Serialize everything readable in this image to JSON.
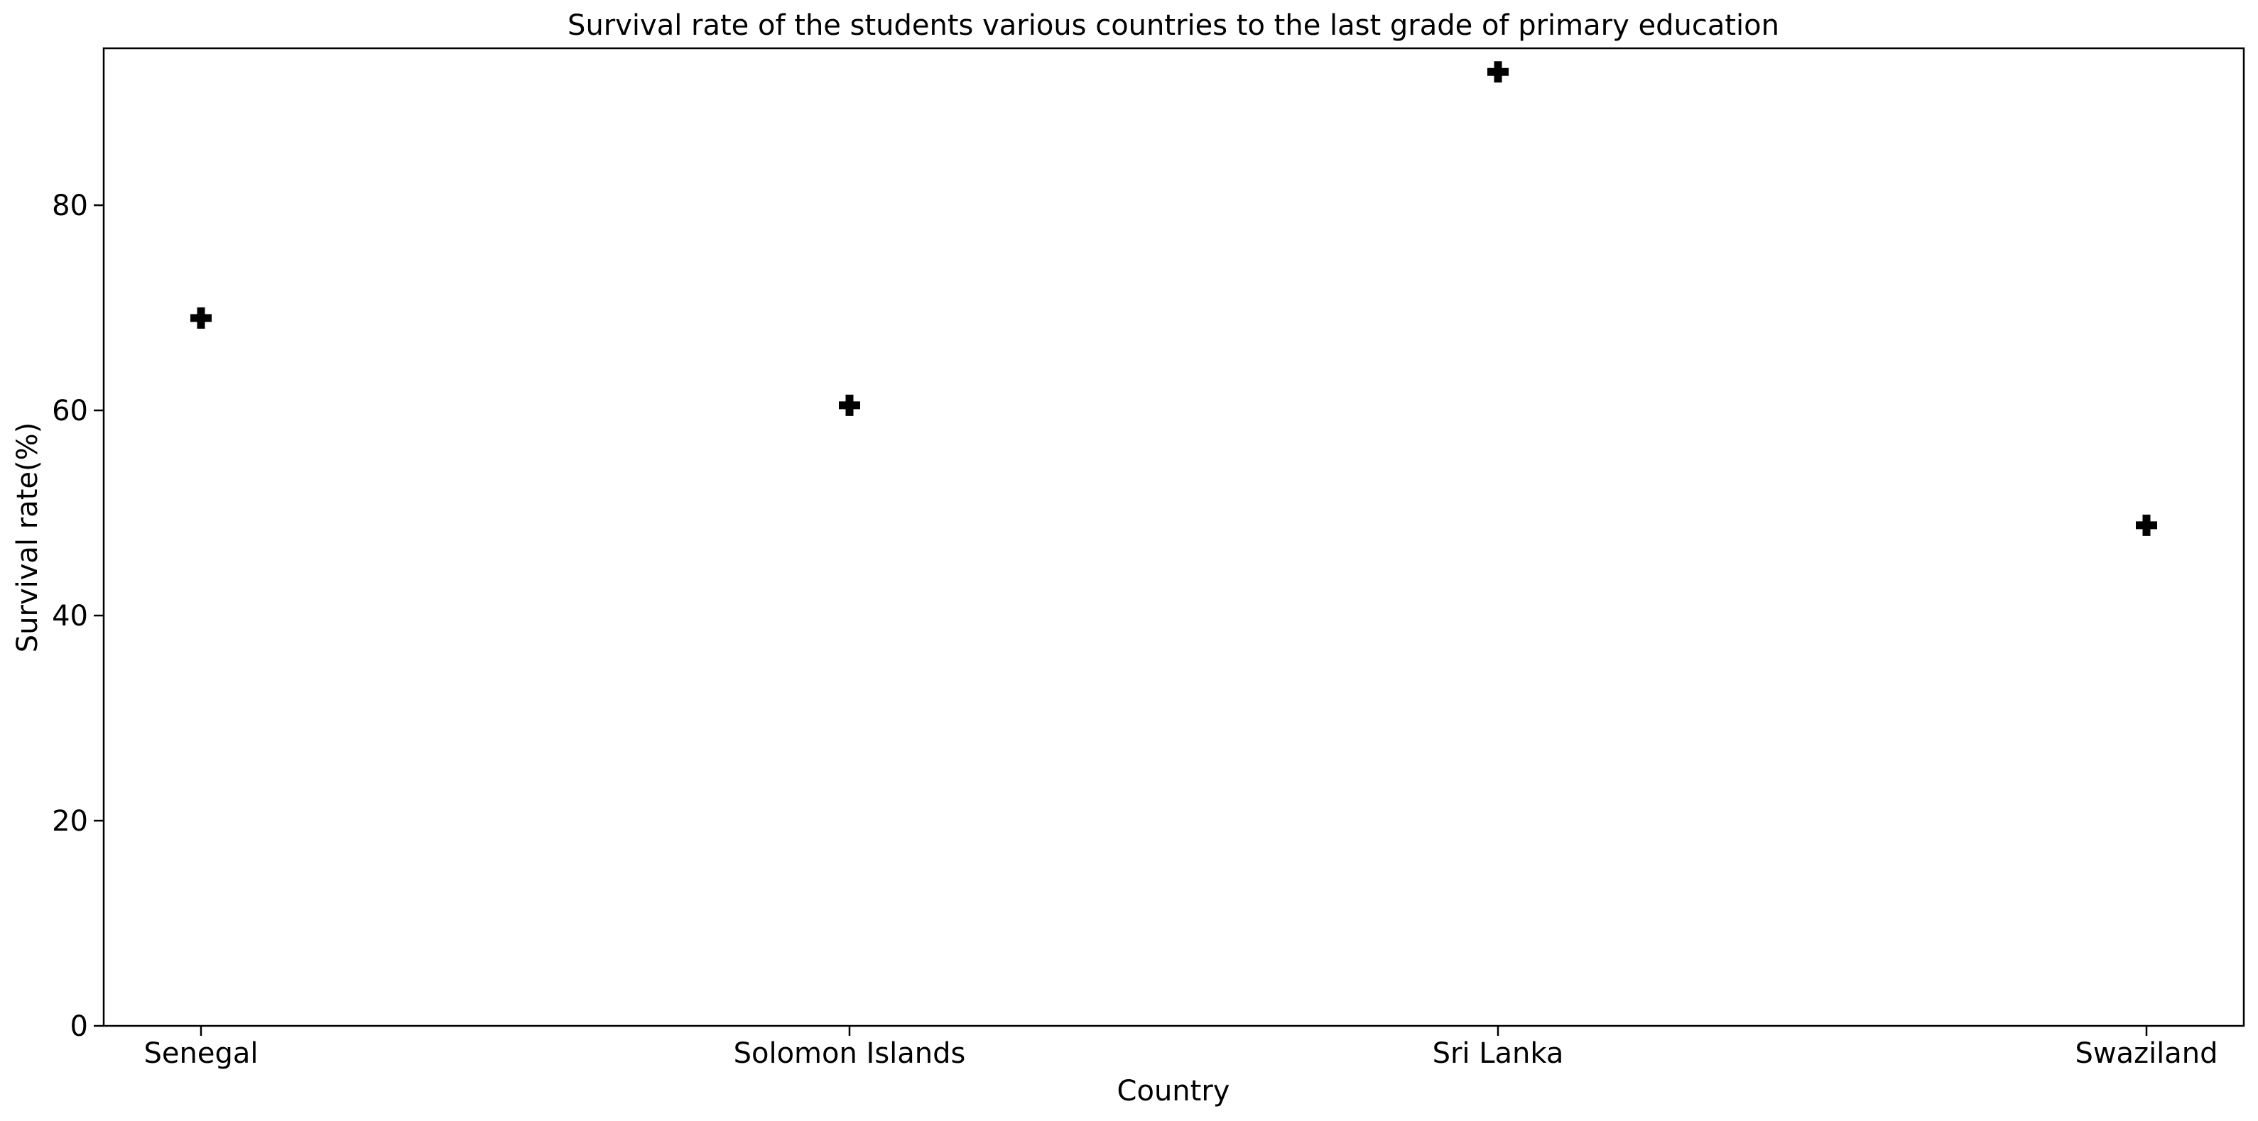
{
  "chart_data": {
    "type": "scatter",
    "title": "Survival rate of the students various countries to the last grade of primary education",
    "xlabel": "Country",
    "ylabel": "Survival rate(%)",
    "categories": [
      "Senegal",
      "Solomon Islands",
      "Sri Lanka",
      "Swaziland"
    ],
    "series": [
      {
        "values": [
          69.0,
          60.5,
          93.0,
          48.8
        ],
        "marker": "plus-filled",
        "color": "#000000"
      }
    ],
    "ylim": [
      0,
      95.3
    ],
    "yticks": [
      0,
      20,
      40,
      60,
      80
    ],
    "grid": false,
    "legend": "none"
  }
}
